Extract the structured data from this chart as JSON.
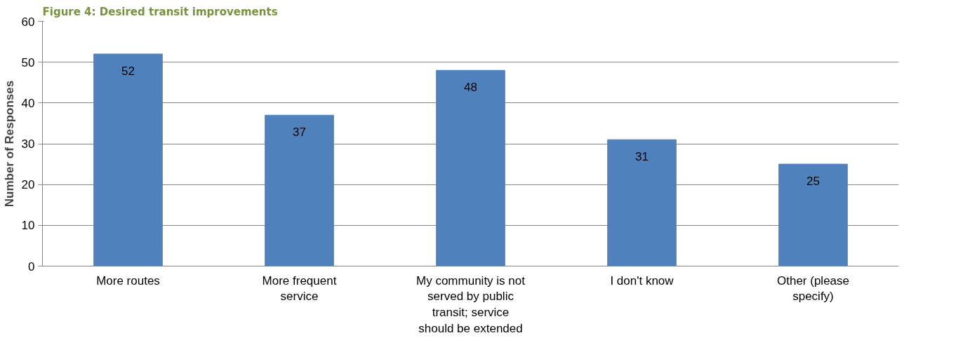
{
  "chart_data": {
    "type": "bar",
    "title": "Figure 4: Desired transit improvements",
    "ylabel": "Number of Responses",
    "categories": [
      "More routes",
      "More frequent service",
      "My community is not served by public transit; service should be extended",
      "I don't know",
      "Other (please specify)"
    ],
    "values": [
      52,
      37,
      48,
      31,
      25
    ],
    "color": "#4f81bd",
    "ylim": [
      0,
      60
    ],
    "yticks": [
      0,
      10,
      20,
      30,
      40,
      50,
      60
    ],
    "grid": "y",
    "data_labels": true
  }
}
